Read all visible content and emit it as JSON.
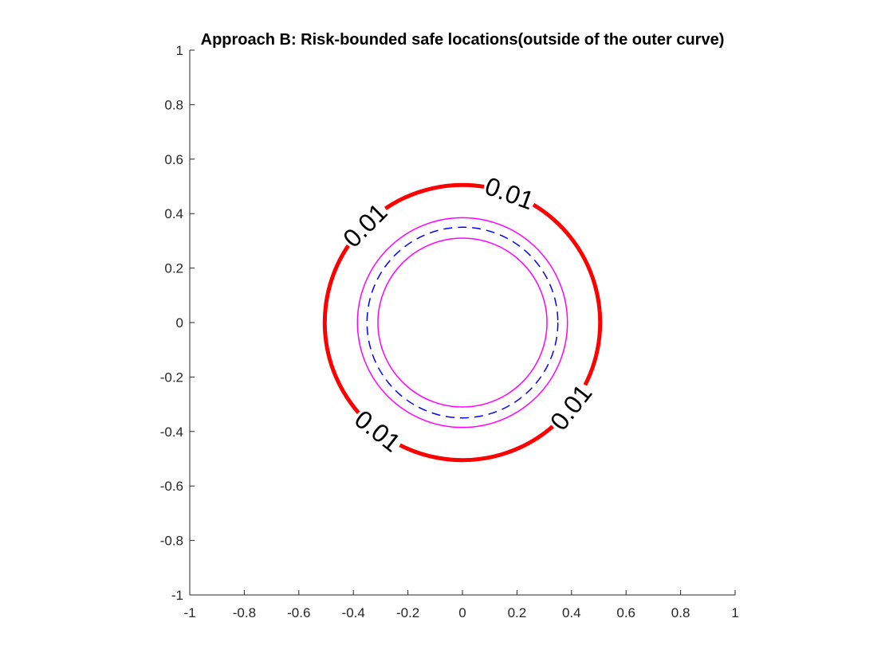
{
  "chart_data": {
    "type": "contour",
    "title": "Approach B: Risk-bounded safe locations(outside of the outer curve)",
    "xlabel": "",
    "ylabel": "",
    "xlim": [
      -1,
      1
    ],
    "ylim": [
      -1,
      1
    ],
    "xticks": [
      "-1",
      "-0.8",
      "-0.6",
      "-0.4",
      "-0.2",
      "0",
      "0.2",
      "0.4",
      "0.6",
      "0.8",
      "1"
    ],
    "yticks": [
      "1",
      "0.8",
      "0.6",
      "0.4",
      "0.2",
      "0",
      "-0.2",
      "-0.4",
      "-0.6",
      "-0.8",
      "-1"
    ],
    "grid": false,
    "aspect": "equal",
    "curves": [
      {
        "kind": "risk-contour",
        "level_label": "0.01",
        "center": [
          0,
          0
        ],
        "radius": 0.505,
        "color": "#ff0000",
        "style": "solid-thick"
      },
      {
        "kind": "outer-boundary",
        "center": [
          0,
          0
        ],
        "radius": 0.385,
        "color": "#ff00ff",
        "style": "solid"
      },
      {
        "kind": "nominal",
        "center": [
          0,
          0
        ],
        "radius": 0.35,
        "color": "#0000ff",
        "style": "dashed"
      },
      {
        "kind": "inner-boundary",
        "center": [
          0,
          0
        ],
        "radius": 0.31,
        "color": "#ff00ff",
        "style": "solid"
      }
    ],
    "contour_labels": [
      {
        "text": "0.01",
        "angle_deg": 135
      },
      {
        "text": "0.01",
        "angle_deg": 70
      },
      {
        "text": "0.01",
        "angle_deg": -38
      },
      {
        "text": "0.01",
        "angle_deg": -128
      }
    ]
  }
}
